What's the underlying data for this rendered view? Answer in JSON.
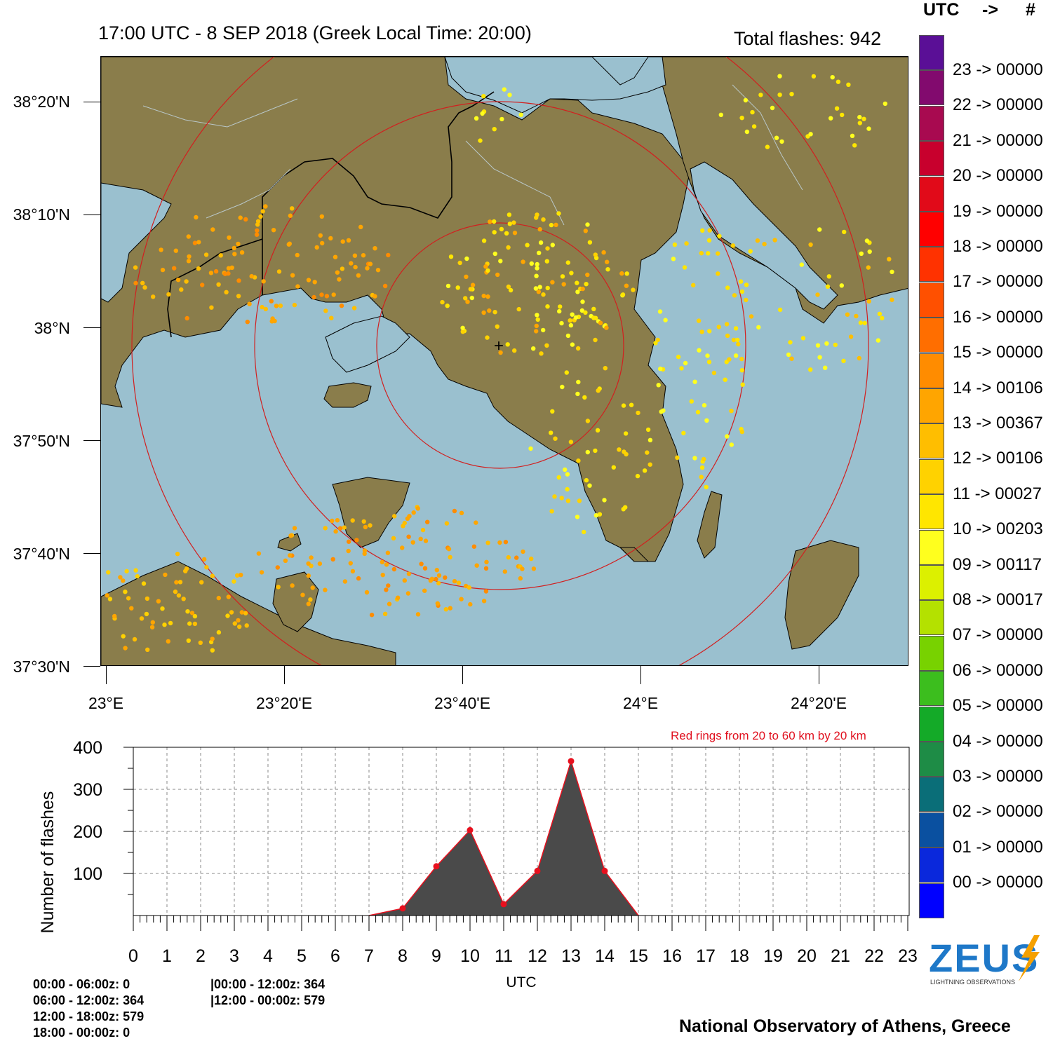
{
  "header": {
    "title": "17:00 UTC -  8  SEP 2018 (Greek Local Time: 20:00)",
    "total_flashes": "Total flashes: 942",
    "colorbar_header_utc": "UTC",
    "colorbar_header_arrow": "->",
    "colorbar_header_hash": "#"
  },
  "map": {
    "lat_labels": [
      "38°20'N",
      "38°10'N",
      "38°N",
      "37°50'N",
      "37°40'N",
      "37°30'N"
    ],
    "lon_labels": [
      "23°E",
      "23°20'E",
      "23°40'E",
      "24°E",
      "24°20'E"
    ],
    "rings_note": "Red rings from 20 to 60 km by 20 km",
    "center_marker": "+",
    "colors": {
      "sea": "#9ac0cf",
      "land": "#8a7d4b",
      "ring": "#d21f1f",
      "border": "#000000"
    }
  },
  "colorbar": [
    {
      "label": "23 -> 00000",
      "color": "#5a0f96"
    },
    {
      "label": "22 -> 00000",
      "color": "#820a6e"
    },
    {
      "label": "21 -> 00000",
      "color": "#a80a50"
    },
    {
      "label": "20 -> 00000",
      "color": "#c8002d"
    },
    {
      "label": "19 -> 00000",
      "color": "#e10a19"
    },
    {
      "label": "18 -> 00000",
      "color": "#ff0000"
    },
    {
      "label": "17 -> 00000",
      "color": "#ff3200"
    },
    {
      "label": "16 -> 00000",
      "color": "#ff5000"
    },
    {
      "label": "15 -> 00000",
      "color": "#ff6e00"
    },
    {
      "label": "14 -> 00106",
      "color": "#ff8c00"
    },
    {
      "label": "13 -> 00367",
      "color": "#ffa500"
    },
    {
      "label": "12 -> 00106",
      "color": "#ffbe00"
    },
    {
      "label": "11 -> 00027",
      "color": "#ffd200"
    },
    {
      "label": "10 -> 00203",
      "color": "#ffe600"
    },
    {
      "label": "09 -> 00117",
      "color": "#ffff1e"
    },
    {
      "label": "08 -> 00017",
      "color": "#dcf000"
    },
    {
      "label": "07 -> 00000",
      "color": "#b4e100"
    },
    {
      "label": "06 -> 00000",
      "color": "#78d200"
    },
    {
      "label": "05 -> 00000",
      "color": "#3cbe1e"
    },
    {
      "label": "04 -> 00000",
      "color": "#14aa28"
    },
    {
      "label": "03 -> 00000",
      "color": "#1e8c46"
    },
    {
      "label": "02 -> 00000",
      "color": "#0a6e78"
    },
    {
      "label": "01 -> 00000",
      "color": "#0a50a0"
    },
    {
      "label": "00 -> 00000",
      "color": "#0a28dc"
    },
    {
      "label": "",
      "color": "#0000ff"
    }
  ],
  "chart_data": {
    "type": "area",
    "ylabel": "Number of flashes",
    "xlabel": "UTC",
    "ylim": [
      0,
      400
    ],
    "yticks": [
      100,
      200,
      300,
      400
    ],
    "xticks": [
      0,
      1,
      2,
      3,
      4,
      5,
      6,
      7,
      8,
      9,
      10,
      11,
      12,
      13,
      14,
      15,
      16,
      17,
      18,
      19,
      20,
      21,
      22,
      23
    ],
    "x": [
      7,
      8,
      9,
      10,
      11,
      12,
      13,
      14,
      15
    ],
    "values": [
      0,
      17,
      117,
      203,
      27,
      106,
      367,
      106,
      0
    ],
    "marked_points": [
      8,
      9,
      10,
      11,
      12,
      13,
      14
    ],
    "grid": true,
    "fill_color": "#4a4a4a",
    "line_color": "#e8101e",
    "marker_color": "#e8101e"
  },
  "footer": {
    "left_lines": [
      "00:00 - 06:00z: 0",
      "06:00 - 12:00z: 364",
      "12:00 - 18:00z: 579",
      "18:00 - 00:00z: 0"
    ],
    "mid_lines": [
      "|00:00 - 12:00z: 364",
      "|12:00 - 00:00z: 579"
    ],
    "institution": "National Observatory of Athens, Greece",
    "logo_text": "ZEUS",
    "logo_subtitle": "LIGHTNING OBSERVATIONS"
  }
}
